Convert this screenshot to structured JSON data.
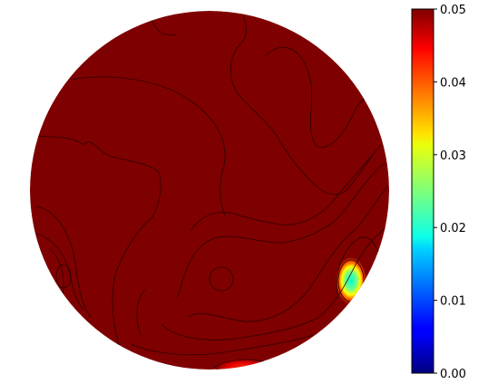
{
  "chart_data": {
    "type": "heatmap",
    "plot_shape": "circle",
    "colormap": "jet",
    "contour_lines": true,
    "colorbar": {
      "position": "right",
      "range": [
        0.0,
        0.05
      ],
      "ticks": [
        {
          "value": 0.0,
          "label": "0.00"
        },
        {
          "value": 0.01,
          "label": "0.01"
        },
        {
          "value": 0.02,
          "label": "0.02"
        },
        {
          "value": 0.03,
          "label": "0.03"
        },
        {
          "value": 0.04,
          "label": "0.04"
        },
        {
          "value": 0.05,
          "label": "0.05"
        }
      ]
    },
    "dominant_value": 0.05,
    "low_regions": [
      {
        "location": "right, lower",
        "min_value": 0.015
      },
      {
        "location": "bottom edge",
        "min_value": 0.045
      }
    ]
  }
}
